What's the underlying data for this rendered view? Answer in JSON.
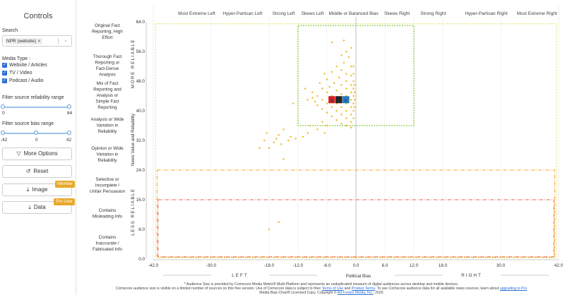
{
  "sidebar": {
    "title": "Controls",
    "search_label": "Search",
    "search_tag": "NPR (website)",
    "media_type_label": "Media Type :",
    "media_types": [
      {
        "label": "Website / Articles",
        "checked": true
      },
      {
        "label": "TV / Video",
        "checked": true
      },
      {
        "label": "Podcast / Audio",
        "checked": true
      }
    ],
    "reliability_label": "Filter source reliability range",
    "reliability_min": "0",
    "reliability_max": "64",
    "bias_label": "Filter source bias range",
    "bias_min": "-42",
    "bias_mid": "0",
    "bias_max": "42",
    "buttons": {
      "more_options": "More Options",
      "reset": "Reset",
      "image": "Image",
      "image_badge": "Member",
      "data": "Data",
      "data_badge": "Pro User"
    }
  },
  "chart_data": {
    "type": "scatter",
    "xlabel": "Political Bias",
    "ylabel": "News Value and Reliability",
    "xlim": [
      -42,
      42
    ],
    "ylim": [
      0,
      64
    ],
    "x_ticks": [
      "-42.0",
      "-30.0",
      "-18.0",
      "-12.0",
      "-6.0",
      "0.0",
      "6.0",
      "12.0",
      "18.0",
      "30.0",
      "42.0"
    ],
    "y_ticks": [
      "64.0",
      "56.0",
      "48.0",
      "40.0",
      "32.0",
      "24.0",
      "16.0",
      "8.0",
      "0.0"
    ],
    "top_categories": [
      "Most Extreme Left",
      "Hyper-Partisan Left",
      "Strong Left",
      "Skews Left",
      "Middle or Balanced Bias",
      "Skews Right",
      "Strong Right",
      "Hyper-Partisan Right",
      "Most Extreme Right"
    ],
    "left_categories": [
      "Original Fact Reporting, High Effort",
      "Thorough Fact Reporting or Fact-Dense Analysis",
      "Mix of Fact Reporting and Analysis or Simple Fact Reporting",
      "Analysis or Wide Variation in Reliability",
      "Opinion or Wide Variation in Reliability",
      "Selective or Incomplete / Unfair Persuasion",
      "Contains Misleading Info",
      "Contains Inaccurate / Fabricated Info"
    ],
    "more_reliable": "MORE RELIABLE",
    "less_reliable": "LESS RELIABLE",
    "left_word": "LEFT",
    "right_word": "RIGHT",
    "source_logo": "npr",
    "logo_position": [
      -3.5,
      43
    ],
    "points": [
      [
        -1,
        57
      ],
      [
        -2,
        56
      ],
      [
        -3,
        55
      ],
      [
        -1.5,
        54.5
      ],
      [
        -2.5,
        53
      ],
      [
        -4,
        52
      ],
      [
        -1,
        52
      ],
      [
        -3,
        51
      ],
      [
        -5,
        50.5
      ],
      [
        -2,
        50
      ],
      [
        -1,
        49.5
      ],
      [
        -3.5,
        49
      ],
      [
        -6,
        48.5
      ],
      [
        -2,
        48
      ],
      [
        -4.5,
        47.5
      ],
      [
        -1,
        47
      ],
      [
        -3,
        47
      ],
      [
        -5.5,
        46.5
      ],
      [
        -7,
        46
      ],
      [
        -2,
        46
      ],
      [
        -4,
        45.5
      ],
      [
        -1,
        45
      ],
      [
        -6,
        45
      ],
      [
        -3,
        44.5
      ],
      [
        -8,
        44
      ],
      [
        -5,
        44
      ],
      [
        -2,
        44
      ],
      [
        -9,
        43.5
      ],
      [
        -7,
        43
      ],
      [
        -1,
        43
      ],
      [
        -6,
        42
      ],
      [
        -4,
        42
      ],
      [
        -2,
        42
      ],
      [
        -8,
        41.5
      ],
      [
        -5,
        41
      ],
      [
        -3,
        41
      ],
      [
        -1,
        41
      ],
      [
        -7,
        40.5
      ],
      [
        -4,
        40
      ],
      [
        -2,
        40
      ],
      [
        -6,
        39.5
      ],
      [
        -3,
        39
      ],
      [
        -1,
        39
      ],
      [
        -5,
        38.5
      ],
      [
        -2,
        38
      ],
      [
        -4,
        37.5
      ],
      [
        -1,
        37
      ],
      [
        -3,
        36.5
      ],
      [
        -2,
        36
      ],
      [
        -6,
        36
      ],
      [
        -1,
        35.5
      ],
      [
        -0.5,
        46
      ],
      [
        -0.5,
        44
      ],
      [
        -0.5,
        42
      ],
      [
        -0.5,
        40
      ],
      [
        -0.5,
        48
      ],
      [
        -0.5,
        50
      ],
      [
        -0.5,
        38
      ],
      [
        -0.5,
        52
      ],
      [
        -0.3,
        45
      ],
      [
        -0.3,
        43
      ],
      [
        -0.3,
        41
      ],
      [
        -0.3,
        47
      ],
      [
        -5,
        58.5
      ],
      [
        -2.5,
        59
      ],
      [
        -9,
        45
      ],
      [
        -10,
        43
      ],
      [
        -8.5,
        42.5
      ],
      [
        -7.5,
        47.5
      ],
      [
        -10.5,
        46
      ],
      [
        -6.5,
        50
      ],
      [
        -13,
        42
      ],
      [
        -15,
        35
      ],
      [
        -16,
        33.5
      ],
      [
        -14,
        32
      ],
      [
        -13.5,
        33
      ],
      [
        -12.5,
        32.5
      ],
      [
        -16.5,
        32.5
      ],
      [
        -17,
        31.5
      ],
      [
        -18,
        30
      ],
      [
        -15.5,
        31
      ],
      [
        -18.5,
        34
      ],
      [
        -19,
        32
      ],
      [
        -20,
        30
      ],
      [
        -11,
        33
      ],
      [
        -10,
        34
      ],
      [
        -8,
        35
      ],
      [
        -9.5,
        36
      ],
      [
        -6.5,
        34
      ],
      [
        -7,
        37
      ],
      [
        -15,
        27
      ],
      [
        -16,
        10
      ],
      [
        -18,
        8
      ]
    ]
  },
  "footer": {
    "line1": "* Audience Size is provided by Comscore Media Metrix® Multi-Platform and represents an unduplicated measure of digital audiences across desktop and mobile devices.",
    "line2_pre": "Comscore audience size is visible on a limited number of sources on this free version. Use of Comscore data is subject to their",
    "terms_of_use": "Terms of Use",
    "and": "and",
    "product_terms": "Product Terms",
    "line2_post": ". To see Comscore audience data for all available news sources, learn about",
    "upgrade": "upgrading to Pro",
    "line3_pre": "Media Bias Chart® Licensed Copy. Copyright ©",
    "line3_link": "Ad Fontes Media, Inc.",
    "line3_year": "2025"
  },
  "colors": {
    "accent": "#2a6fd6",
    "point": "#f0c040",
    "green_box": "#8fd14f",
    "orange_box": "#f5a623",
    "red_box": "#e8604c",
    "yellow_box": "#e9e27a",
    "badge": "#e8a82a"
  }
}
